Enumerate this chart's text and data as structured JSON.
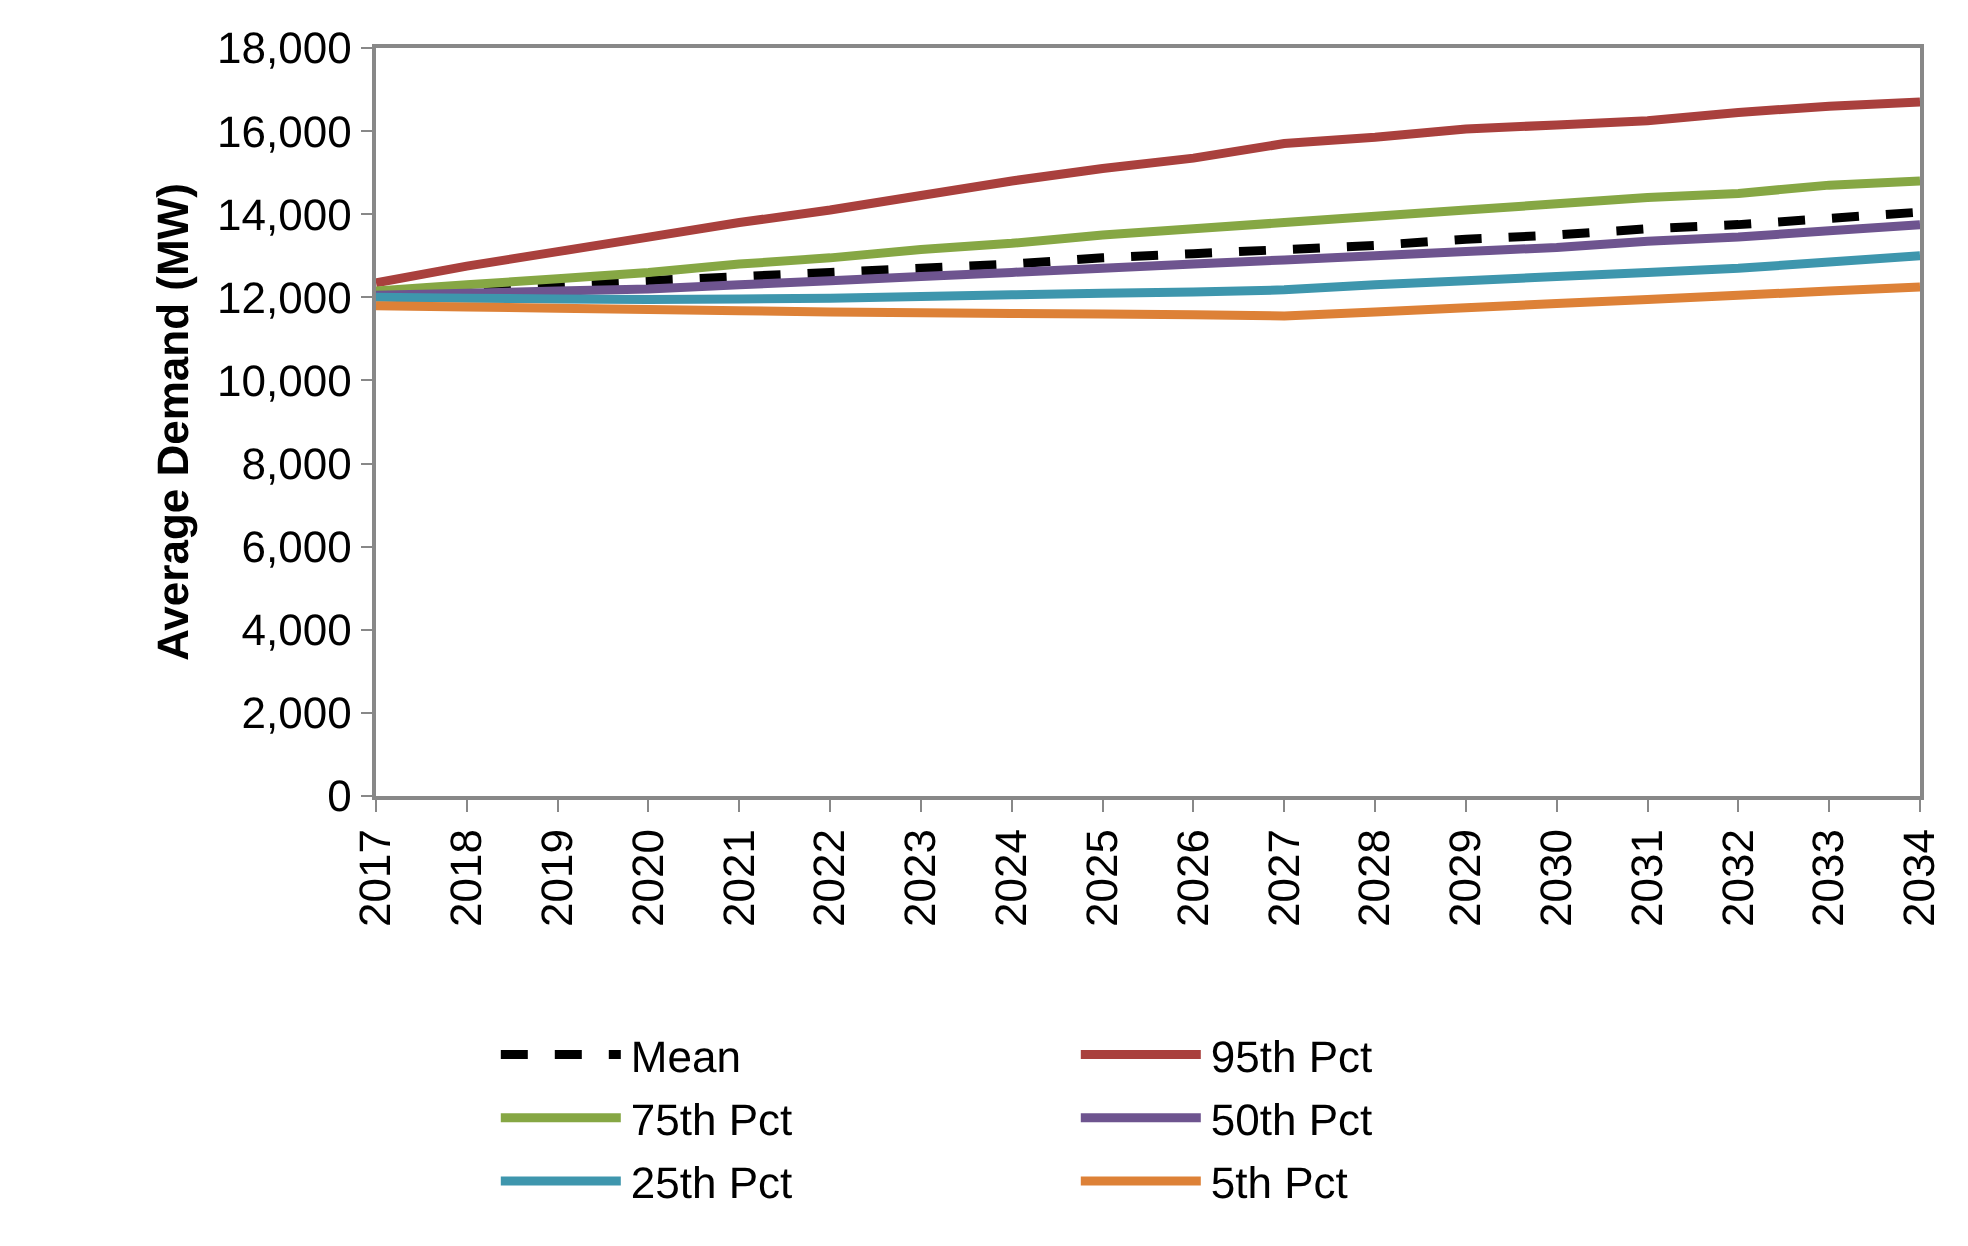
{
  "chart_data": {
    "type": "line",
    "ylabel": "Average Demand (MW)",
    "categories": [
      "2017",
      "2018",
      "2019",
      "2020",
      "2021",
      "2022",
      "2023",
      "2024",
      "2025",
      "2026",
      "2027",
      "2028",
      "2029",
      "2030",
      "2031",
      "2032",
      "2033",
      "2034"
    ],
    "ylim": [
      0,
      18000
    ],
    "yticks": [
      {
        "value": 0,
        "label": "0"
      },
      {
        "value": 2000,
        "label": "2,000"
      },
      {
        "value": 4000,
        "label": "4,000"
      },
      {
        "value": 6000,
        "label": "6,000"
      },
      {
        "value": 8000,
        "label": "8,000"
      },
      {
        "value": 10000,
        "label": "10,000"
      },
      {
        "value": 12000,
        "label": "12,000"
      },
      {
        "value": 14000,
        "label": "14,000"
      },
      {
        "value": 16000,
        "label": "16,000"
      },
      {
        "value": 18000,
        "label": "18,000"
      }
    ],
    "legend": "bottom",
    "series": [
      {
        "name": "Mean",
        "color": "#000000",
        "line_style": "dashed",
        "values": [
          12100,
          12200,
          12300,
          12400,
          12500,
          12600,
          12700,
          12800,
          12950,
          13050,
          13150,
          13250,
          13400,
          13500,
          13650,
          13750,
          13900,
          14050
        ]
      },
      {
        "name": "95th Pct",
        "color": "#a9403d",
        "line_style": "solid",
        "values": [
          12350,
          12750,
          13100,
          13450,
          13800,
          14100,
          14450,
          14800,
          15100,
          15350,
          15700,
          15850,
          16050,
          16150,
          16250,
          16450,
          16600,
          16700
        ]
      },
      {
        "name": "75th Pct",
        "color": "#86a744",
        "line_style": "solid",
        "values": [
          12150,
          12300,
          12450,
          12600,
          12800,
          12950,
          13150,
          13300,
          13500,
          13650,
          13800,
          13950,
          14100,
          14250,
          14400,
          14500,
          14700,
          14800
        ]
      },
      {
        "name": "50th Pct",
        "color": "#6e548f",
        "line_style": "solid",
        "values": [
          12050,
          12100,
          12150,
          12200,
          12300,
          12400,
          12500,
          12600,
          12700,
          12800,
          12900,
          13000,
          13100,
          13200,
          13350,
          13450,
          13600,
          13750
        ]
      },
      {
        "name": "25th Pct",
        "color": "#3e96ad",
        "line_style": "solid",
        "values": [
          12000,
          11980,
          11960,
          11950,
          11960,
          11980,
          12020,
          12060,
          12100,
          12130,
          12180,
          12300,
          12400,
          12500,
          12600,
          12700,
          12850,
          13000
        ]
      },
      {
        "name": "5th Pct",
        "color": "#dd8137",
        "line_style": "solid",
        "values": [
          11800,
          11770,
          11740,
          11710,
          11680,
          11650,
          11630,
          11610,
          11600,
          11580,
          11550,
          11650,
          11750,
          11850,
          11950,
          12050,
          12150,
          12250
        ]
      }
    ]
  }
}
